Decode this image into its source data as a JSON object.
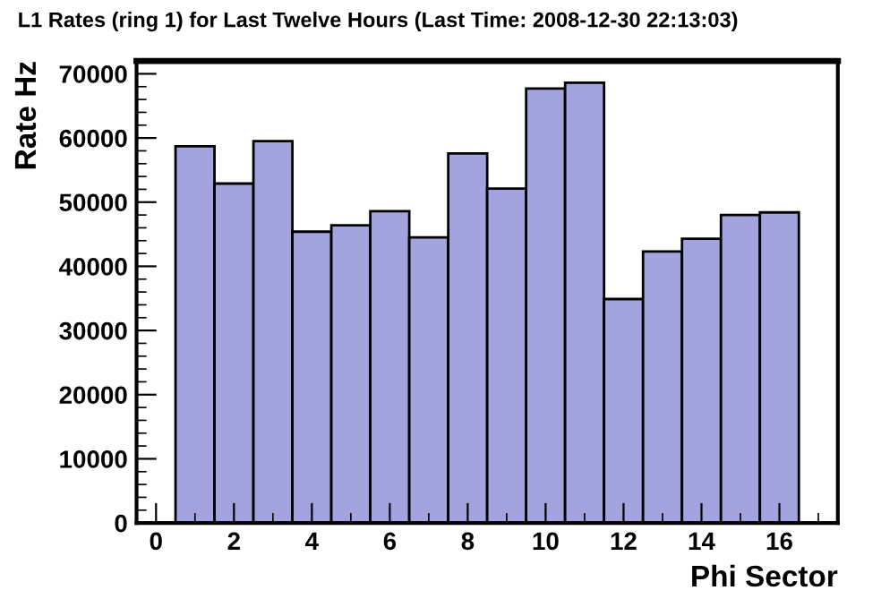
{
  "chart_data": {
    "type": "histogram",
    "title": "L1 Rates (ring 1) for Last Twelve Hours (Last Time: 2008-12-30 22:13:03)",
    "xlabel": "Phi Sector",
    "ylabel": "Rate Hz",
    "bins": [
      0.5,
      1.5,
      2.5,
      3.5,
      4.5,
      5.5,
      6.5,
      7.5,
      8.5,
      9.5,
      10.5,
      11.5,
      12.5,
      13.5,
      14.5,
      15.5,
      16.5
    ],
    "values": [
      58700,
      52900,
      59500,
      45400,
      46400,
      48600,
      44500,
      57600,
      52100,
      67700,
      68600,
      34900,
      42300,
      44300,
      48000,
      48400
    ],
    "color": "#a3a3e0",
    "xlim": [
      -0.5,
      17.5
    ],
    "xticks": [
      0,
      2,
      4,
      6,
      8,
      10,
      12,
      14,
      16
    ],
    "ylim": [
      0,
      72000
    ],
    "yticks": [
      0,
      10000,
      20000,
      30000,
      40000,
      50000,
      60000,
      70000
    ],
    "grid": false,
    "legend": false
  }
}
